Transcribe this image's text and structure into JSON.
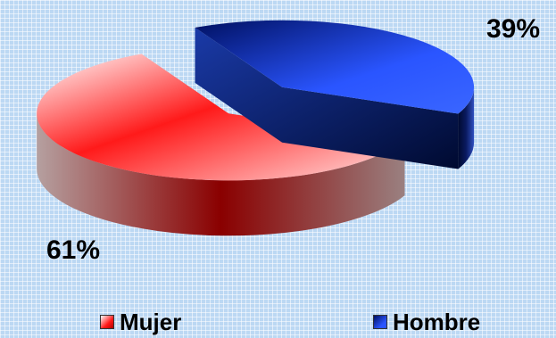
{
  "chart_data": {
    "type": "pie",
    "style": "3d-exploded",
    "categories": [
      "Mujer",
      "Hombre"
    ],
    "values": [
      61,
      39
    ],
    "unit": "%",
    "data_labels": [
      "61%",
      "39%"
    ],
    "legend": {
      "placement": "bottom",
      "entries": [
        "Mujer",
        "Hombre"
      ]
    },
    "colors": {
      "Mujer": "#ff2020",
      "Hombre": "#2a4fe0"
    }
  }
}
